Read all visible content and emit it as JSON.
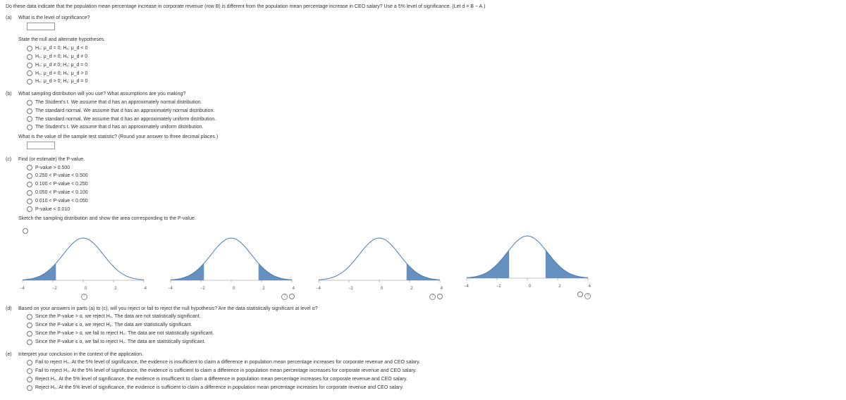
{
  "intro": "Do these data indicate that the population mean percentage increase in corporate revenue (row B) is different from the population mean percentage increase in CEO salary? Use a 5% level of significance. (Let d = B − A.)",
  "a": {
    "label": "(a)",
    "q1": "What is the level of significance?",
    "q2": "State the null and alternate hypotheses.",
    "opts": [
      "H₀: μ_d = 0; H₁: μ_d < 0",
      "H₀: μ_d = 0; H₁: μ_d ≠ 0",
      "H₀: μ_d ≠ 0; H₁: μ_d = 0",
      "H₀: μ_d = 0; H₁: μ_d > 0",
      "H₀: μ_d > 0; H₁: μ_d = 0"
    ]
  },
  "b": {
    "label": "(b)",
    "q1": "What sampling distribution will you use? What assumptions are you making?",
    "opts": [
      "The Student's t. We assume that d has an approximately normal distribution.",
      "The standard normal. We assume that d has an approximately normal distribution.",
      "The standard normal. We assume that d has an approximately uniform distribution.",
      "The Student's t. We assume that d has an approximately uniform distribution."
    ],
    "q2": "What is the value of the sample test statistic? (Round your answer to three decimal places.)"
  },
  "c": {
    "label": "(c)",
    "q1": "Find (or estimate) the P-value.",
    "opts": [
      "P-value > 0.500",
      "0.250 < P-value < 0.500",
      "0.100 < P-value < 0.250",
      "0.050 < P-value < 0.100",
      "0.010 < P-value < 0.050",
      "P-value < 0.010"
    ],
    "q2": "Sketch the sampling distribution and show the area corresponding to the P-value.",
    "axis": [
      "−4",
      "−2",
      "0",
      "2",
      "4"
    ],
    "curve_color": "#4a7db5",
    "fill_color": "#4a7db5",
    "axis_color": "#888888",
    "graphs": [
      {
        "left_fill_to": 0.28,
        "right_fill_from": null
      },
      {
        "left_fill_to": 0.28,
        "right_fill_from": 0.72
      },
      {
        "left_fill_to": null,
        "right_fill_from": 0.72
      },
      {
        "left_fill_to": 0.35,
        "right_fill_from": 0.65
      }
    ]
  },
  "d": {
    "label": "(d)",
    "q1": "Based on your answers in parts (a) to (c), will you reject or fail to reject the null hypothesis? Are the data statistically significant at level α?",
    "opts": [
      "Since the P-value > α, we reject H₀. The data are not statistically significant.",
      "Since the P-value ≤ α, we reject H₀. The data are statistically significant.",
      "Since the P-value > α, we fail to reject H₀. The data are not statistically significant.",
      "Since the P-value ≤ α, we fail to reject H₀. The data are statistically significant."
    ]
  },
  "e": {
    "label": "(e)",
    "q1": "Interpret your conclusion in the context of the application.",
    "opts": [
      "Fail to reject H₀. At the 5% level of significance, the evidence is insufficient to claim a difference in population mean percentage increases for corporate revenue and CEO salary.",
      "Fail to reject H₀. At the 5% level of significance, the evidence is sufficient to claim a difference in population mean percentage increases for corporate revenue and CEO salary.",
      "Reject H₀. At the 5% level of significance, the evidence is insufficient to claim a difference in population mean percentage increases for corporate revenue and CEO salary.",
      "Reject H₀. At the 5% level of significance, the evidence is sufficient to claim a difference in population mean percentage increases for corporate revenue and CEO salary."
    ]
  }
}
